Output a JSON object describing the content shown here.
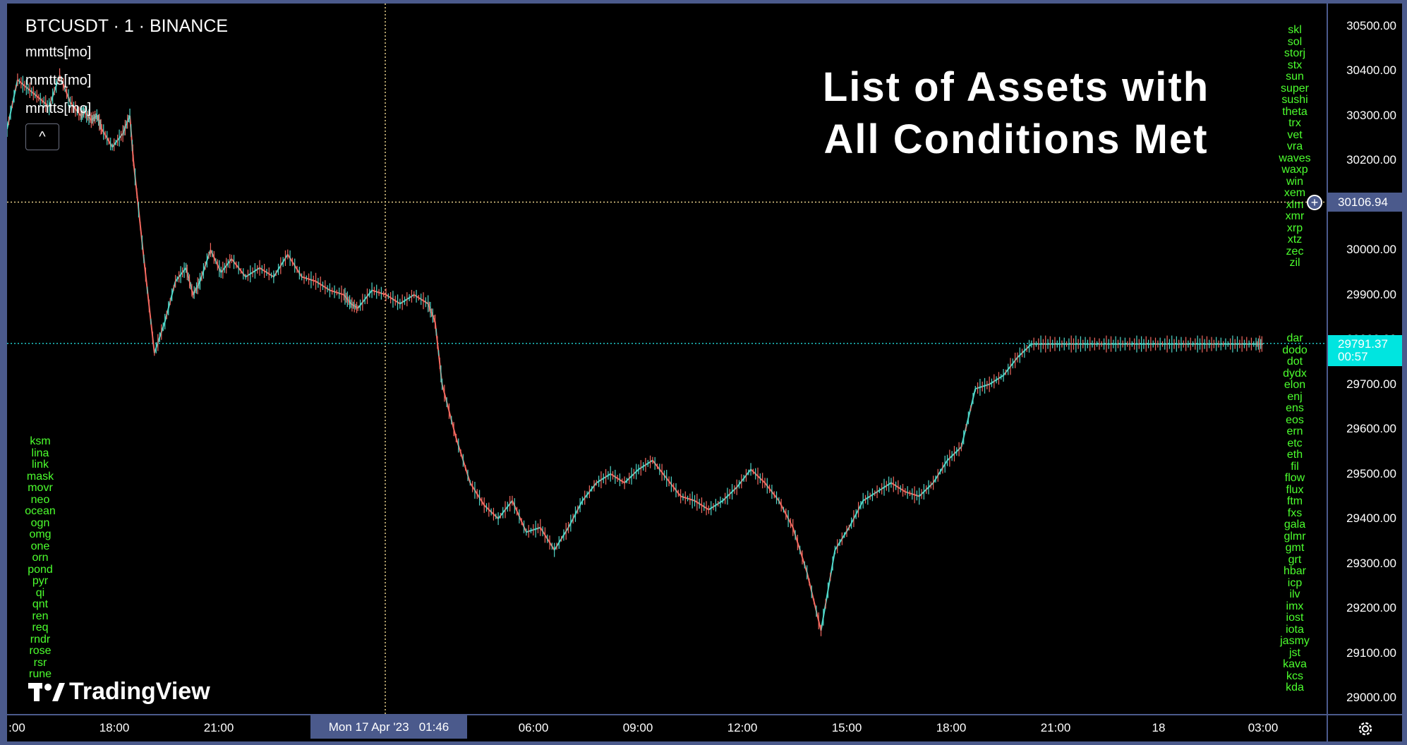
{
  "header": {
    "symbol_title": "BTCUSDT · 1 · BINANCE",
    "indicators": [
      "mmtts[mo]",
      "mmtts[mo]",
      "mmtts[mo]"
    ],
    "collapse_glyph": "^"
  },
  "overlay": {
    "title_line1": "List of Assets with",
    "title_line2": "All Conditions Met"
  },
  "assets": {
    "left": [
      "ksm",
      "lina",
      "link",
      "mask",
      "movr",
      "neo",
      "ocean",
      "ogn",
      "omg",
      "one",
      "orn",
      "pond",
      "pyr",
      "qi",
      "qnt",
      "ren",
      "req",
      "rndr",
      "rose",
      "rsr",
      "rune"
    ],
    "right_top": [
      "skl",
      "sol",
      "storj",
      "stx",
      "sun",
      "super",
      "sushi",
      "theta",
      "trx",
      "vet",
      "vra",
      "waves",
      "waxp",
      "win",
      "xem",
      "xlm",
      "xmr",
      "xrp",
      "xtz",
      "zec",
      "zil"
    ],
    "right_bottom": [
      "dar",
      "dodo",
      "dot",
      "dydx",
      "elon",
      "enj",
      "ens",
      "eos",
      "ern",
      "etc",
      "eth",
      "fil",
      "flow",
      "flux",
      "ftm",
      "fxs",
      "gala",
      "glmr",
      "gmt",
      "grt",
      "hbar",
      "icp",
      "ilv",
      "imx",
      "iost",
      "iota",
      "jasmy",
      "jst",
      "kava",
      "kcs",
      "kda"
    ]
  },
  "crosshair": {
    "price_label": "30106.94",
    "time_label": "Mon 17 Apr '23   01:46"
  },
  "last_price": {
    "value": "29791.37",
    "countdown": "00:57"
  },
  "brand": "TradingView",
  "colors": {
    "bull": "#4fd6c8",
    "bear": "#f2685f",
    "asset_text": "#4cff2e",
    "last_price_bg": "#00e5e0",
    "crosshair": "#e8d08a"
  },
  "chart_data": {
    "type": "line",
    "title": "BTCUSDT · 1 · BINANCE",
    "xlabel": "",
    "ylabel": "",
    "ylim": [
      28950,
      30550
    ],
    "y_ticks": [
      "30500.00",
      "30400.00",
      "30300.00",
      "30200.00",
      "30100.00",
      "30000.00",
      "29900.00",
      "29800.00",
      "29700.00",
      "29600.00",
      "29500.00",
      "29400.00",
      "29300.00",
      "29200.00",
      "29100.00",
      "29000.00"
    ],
    "x_ticks": [
      ":00",
      "18:00",
      "21:00",
      "06:00",
      "09:00",
      "12:00",
      "15:00",
      "18:00",
      "21:00",
      "18",
      "03:00"
    ],
    "series": [
      {
        "x": [
          0,
          15,
          30,
          45,
          60,
          75,
          90,
          105,
          110,
          120,
          128,
          135,
          150,
          165,
          175,
          180,
          195,
          210,
          225,
          240,
          255,
          265,
          275,
          290,
          305,
          320,
          340,
          360,
          380,
          400,
          420,
          440,
          460,
          480,
          490,
          500,
          520,
          540,
          560,
          580,
          600,
          610,
          620,
          640,
          660,
          680,
          700,
          720,
          740,
          760,
          780,
          800,
          820,
          840,
          860,
          880,
          900,
          920,
          940,
          960,
          980,
          1000,
          1020,
          1040,
          1060,
          1080,
          1100,
          1120,
          1140,
          1160,
          1180,
          1200,
          1220,
          1240,
          1260,
          1280,
          1300,
          1320,
          1340,
          1360,
          1380,
          1400,
          1420,
          1440,
          1460,
          1480,
          1500,
          1520,
          1540,
          1560,
          1580,
          1600,
          1620,
          1640,
          1660,
          1680,
          1700,
          1720,
          1740,
          1760,
          1780,
          1790
        ],
        "values": [
          30270,
          30380,
          30360,
          30340,
          30320,
          30390,
          30330,
          30300,
          30310,
          30290,
          30300,
          30270,
          30230,
          30260,
          30300,
          30200,
          29980,
          29770,
          29840,
          29930,
          29960,
          29900,
          29930,
          30000,
          29950,
          29980,
          29940,
          29960,
          29940,
          29990,
          29940,
          29930,
          29910,
          29900,
          29880,
          29870,
          29910,
          29900,
          29880,
          29900,
          29880,
          29840,
          29700,
          29580,
          29480,
          29430,
          29400,
          29440,
          29370,
          29380,
          29330,
          29380,
          29440,
          29480,
          29500,
          29480,
          29510,
          29530,
          29490,
          29450,
          29440,
          29420,
          29440,
          29470,
          29510,
          29480,
          29440,
          29380,
          29280,
          29150,
          29330,
          29380,
          29440,
          29460,
          29480,
          29460,
          29450,
          29480,
          29530,
          29560,
          29690,
          29700,
          29720,
          29760,
          29790,
          29790,
          29790,
          29790,
          29790,
          29790,
          29790,
          29790,
          29790,
          29790,
          29790,
          29790,
          29790,
          29790,
          29790,
          29790,
          29790,
          29790
        ]
      }
    ]
  }
}
